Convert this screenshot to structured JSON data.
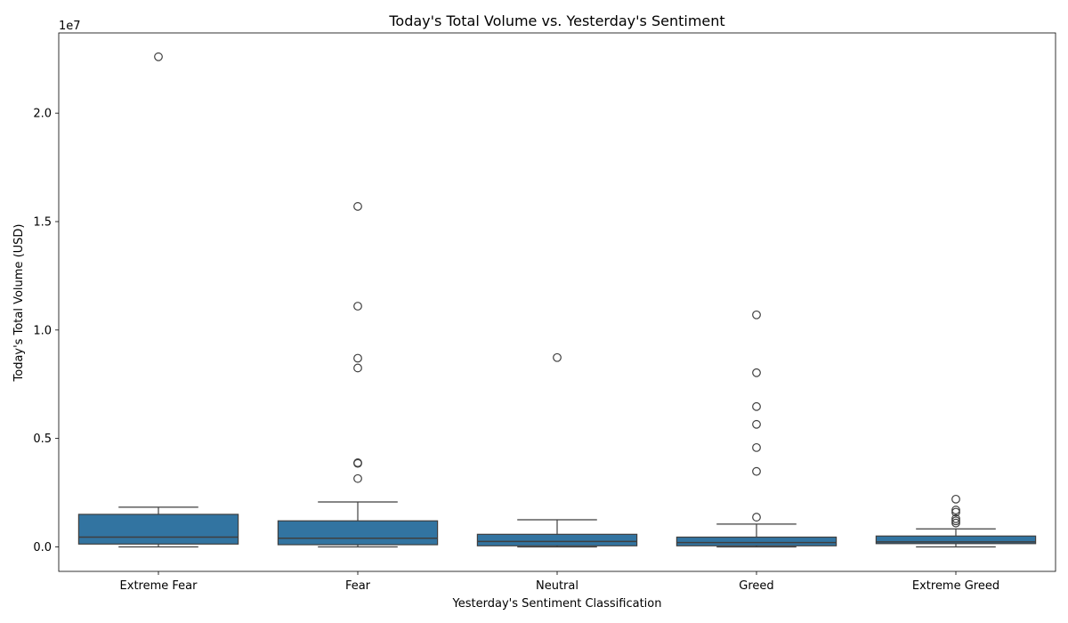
{
  "chart_data": {
    "type": "box",
    "title": "Today's Total Volume vs. Yesterday's Sentiment",
    "xlabel": "Yesterday's Sentiment Classification",
    "ylabel": "Today's Total Volume (USD)",
    "y_offset_label": "1e7",
    "y_scale": 10000000,
    "ylim": [
      -1130000,
      23700000
    ],
    "yticks": [
      0,
      5000000,
      10000000,
      15000000,
      20000000
    ],
    "ytick_labels": [
      "0.0",
      "0.5",
      "1.0",
      "1.5",
      "2.0"
    ],
    "grid": false,
    "box_color": "#3274a1",
    "line_color": "#3f3f3f",
    "categories": [
      "Extreme Fear",
      "Fear",
      "Neutral",
      "Greed",
      "Extreme Greed"
    ],
    "boxes": [
      {
        "whisker_low": 0,
        "q1": 130000,
        "median": 450000,
        "q3": 1500000,
        "whisker_high": 1830000,
        "outliers": [
          22600000
        ]
      },
      {
        "whisker_low": 0,
        "q1": 100000,
        "median": 400000,
        "q3": 1200000,
        "whisker_high": 2070000,
        "outliers": [
          15700000,
          11100000,
          8700000,
          8250000,
          3880000,
          3850000,
          3150000
        ]
      },
      {
        "whisker_low": 0,
        "q1": 50000,
        "median": 250000,
        "q3": 580000,
        "whisker_high": 1250000,
        "outliers": [
          8730000
        ]
      },
      {
        "whisker_low": 0,
        "q1": 50000,
        "median": 200000,
        "q3": 450000,
        "whisker_high": 1050000,
        "outliers": [
          10700000,
          8030000,
          6470000,
          5650000,
          4580000,
          3480000,
          1370000
        ]
      },
      {
        "whisker_low": 0,
        "q1": 150000,
        "median": 230000,
        "q3": 500000,
        "whisker_high": 830000,
        "outliers": [
          2200000,
          1700000,
          1600000,
          1300000,
          1200000,
          1100000
        ]
      }
    ]
  }
}
